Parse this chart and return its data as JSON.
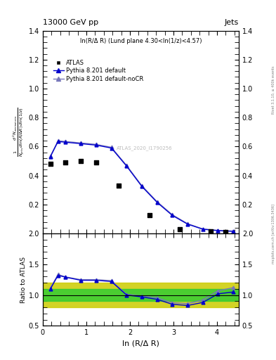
{
  "title_left": "13000 GeV pp",
  "title_right": "Jets",
  "annotation": "ln(R/Δ R) (Lund plane 4.30<ln(1/z)<4.57)",
  "watermark": "ATLAS_2020_I1790256",
  "ylabel_ratio": "Ratio to ATLAS",
  "xlabel": "ln (R/Δ R)",
  "right_label": "mcplots.cern.ch [arXiv:1306.3436]",
  "right_label2": "Rivet 3.1.10, ≥ 400k events",
  "atlas_x": [
    0.175,
    0.525,
    0.875,
    1.225,
    1.75,
    2.45,
    3.15,
    3.85,
    4.2
  ],
  "atlas_y": [
    0.48,
    0.49,
    0.5,
    0.49,
    0.33,
    0.125,
    0.03,
    0.015,
    0.01
  ],
  "pythia_default_x": [
    0.175,
    0.35,
    0.525,
    0.875,
    1.225,
    1.575,
    1.925,
    2.275,
    2.625,
    2.975,
    3.325,
    3.675,
    4.025,
    4.375
  ],
  "pythia_default_y": [
    0.53,
    0.635,
    0.63,
    0.62,
    0.61,
    0.59,
    0.465,
    0.325,
    0.215,
    0.125,
    0.065,
    0.03,
    0.02,
    0.015
  ],
  "pythia_nocr_x": [
    0.175,
    0.35,
    0.525,
    0.875,
    1.225,
    1.575,
    1.925,
    2.275,
    2.625,
    2.975,
    3.325,
    3.675,
    4.025,
    4.375
  ],
  "pythia_nocr_y": [
    0.535,
    0.64,
    0.635,
    0.625,
    0.615,
    0.595,
    0.47,
    0.33,
    0.22,
    0.13,
    0.068,
    0.032,
    0.022,
    0.017
  ],
  "ratio_default_x": [
    0.175,
    0.35,
    0.525,
    0.875,
    1.225,
    1.575,
    1.925,
    2.275,
    2.625,
    2.975,
    3.325,
    3.675,
    4.025,
    4.375
  ],
  "ratio_default_y": [
    1.1,
    1.32,
    1.29,
    1.24,
    1.24,
    1.22,
    1.0,
    0.97,
    0.93,
    0.85,
    0.83,
    0.88,
    1.02,
    1.05
  ],
  "ratio_nocr_x": [
    0.175,
    0.35,
    0.525,
    0.875,
    1.225,
    1.575,
    1.925,
    2.275,
    2.625,
    2.975,
    3.325,
    3.675,
    4.025,
    4.375
  ],
  "ratio_nocr_y": [
    1.115,
    1.335,
    1.295,
    1.25,
    1.25,
    1.235,
    1.01,
    0.985,
    0.955,
    0.875,
    0.86,
    0.92,
    1.07,
    1.12
  ],
  "yellow_band_lo": 0.8,
  "yellow_band_hi": 1.2,
  "green_band_lo": 0.9,
  "green_band_hi": 1.1,
  "color_default": "#0000cc",
  "color_nocr": "#7777bb",
  "color_atlas": "black",
  "color_green": "#33cc33",
  "color_yellow": "#cccc00",
  "xlim": [
    0,
    4.5
  ],
  "ylim_main": [
    0,
    1.4
  ],
  "ylim_ratio": [
    0.5,
    2.0
  ],
  "yticks_main": [
    0.2,
    0.4,
    0.6,
    0.8,
    1.0,
    1.2,
    1.4
  ],
  "yticks_ratio": [
    0.5,
    1.0,
    1.5,
    2.0
  ],
  "xticks": [
    0,
    1,
    2,
    3,
    4
  ]
}
